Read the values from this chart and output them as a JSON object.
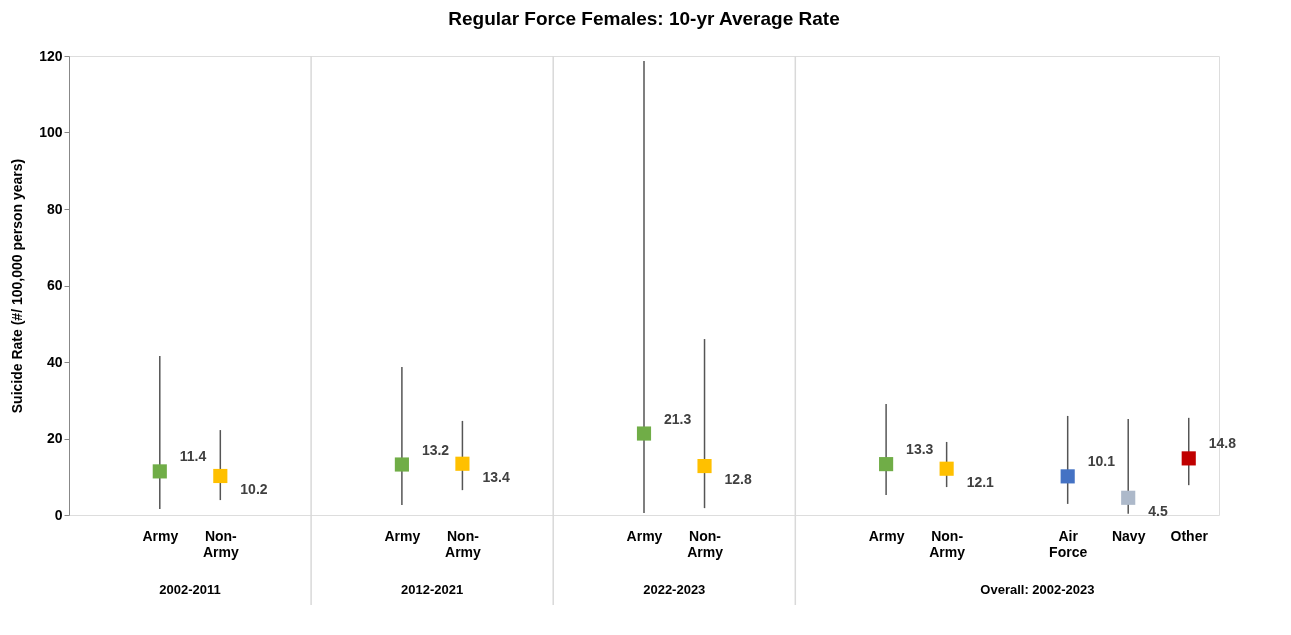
{
  "chart_data": {
    "type": "scatter",
    "title": "Regular Force Females: 10-yr Average Rate",
    "ylabel": "Suicide Rate (#/ 100,000 person years)",
    "categories": [
      null,
      "Army",
      "Non-Army",
      null,
      null,
      "Army",
      "Non-Army",
      null,
      null,
      "Army",
      "Non-Army",
      null,
      null,
      "Army",
      "Non-Army",
      null,
      "Air Force",
      "Navy",
      "Other"
    ],
    "values": [
      null,
      11.4,
      10.2,
      null,
      null,
      13.2,
      13.4,
      null,
      null,
      21.3,
      12.8,
      null,
      null,
      13.3,
      12.1,
      null,
      10.1,
      4.5,
      14.8
    ],
    "colors": [
      null,
      "#70ad47",
      "#ffc000",
      null,
      null,
      "#70ad47",
      "#ffc000",
      null,
      null,
      "#70ad47",
      "#ffc000",
      null,
      null,
      "#70ad47",
      "#ffc000",
      null,
      "#4472c4",
      "#adb9ca",
      "#c00000"
    ],
    "errors": [
      null,
      [
        1.6,
        41.6
      ],
      [
        3.9,
        22.2
      ],
      null,
      null,
      [
        2.6,
        38.7
      ],
      [
        6.5,
        24.6
      ],
      null,
      null,
      [
        0.5,
        118.7
      ],
      [
        1.8,
        46
      ],
      null,
      null,
      [
        5.2,
        29
      ],
      [
        7.3,
        19.1
      ],
      null,
      [
        2.9,
        25.9
      ],
      [
        0.3,
        25.1
      ],
      [
        7.8,
        25.4
      ]
    ],
    "marker": "square",
    "data_labels": true,
    "grid": false,
    "ylim": [
      0,
      120
    ],
    "yticks": [
      0,
      20,
      40,
      60,
      80,
      100,
      120
    ],
    "annotations": [
      "2002-2011",
      "2012-2021",
      "2022-2023",
      "Overall: 2002-2023"
    ]
  }
}
